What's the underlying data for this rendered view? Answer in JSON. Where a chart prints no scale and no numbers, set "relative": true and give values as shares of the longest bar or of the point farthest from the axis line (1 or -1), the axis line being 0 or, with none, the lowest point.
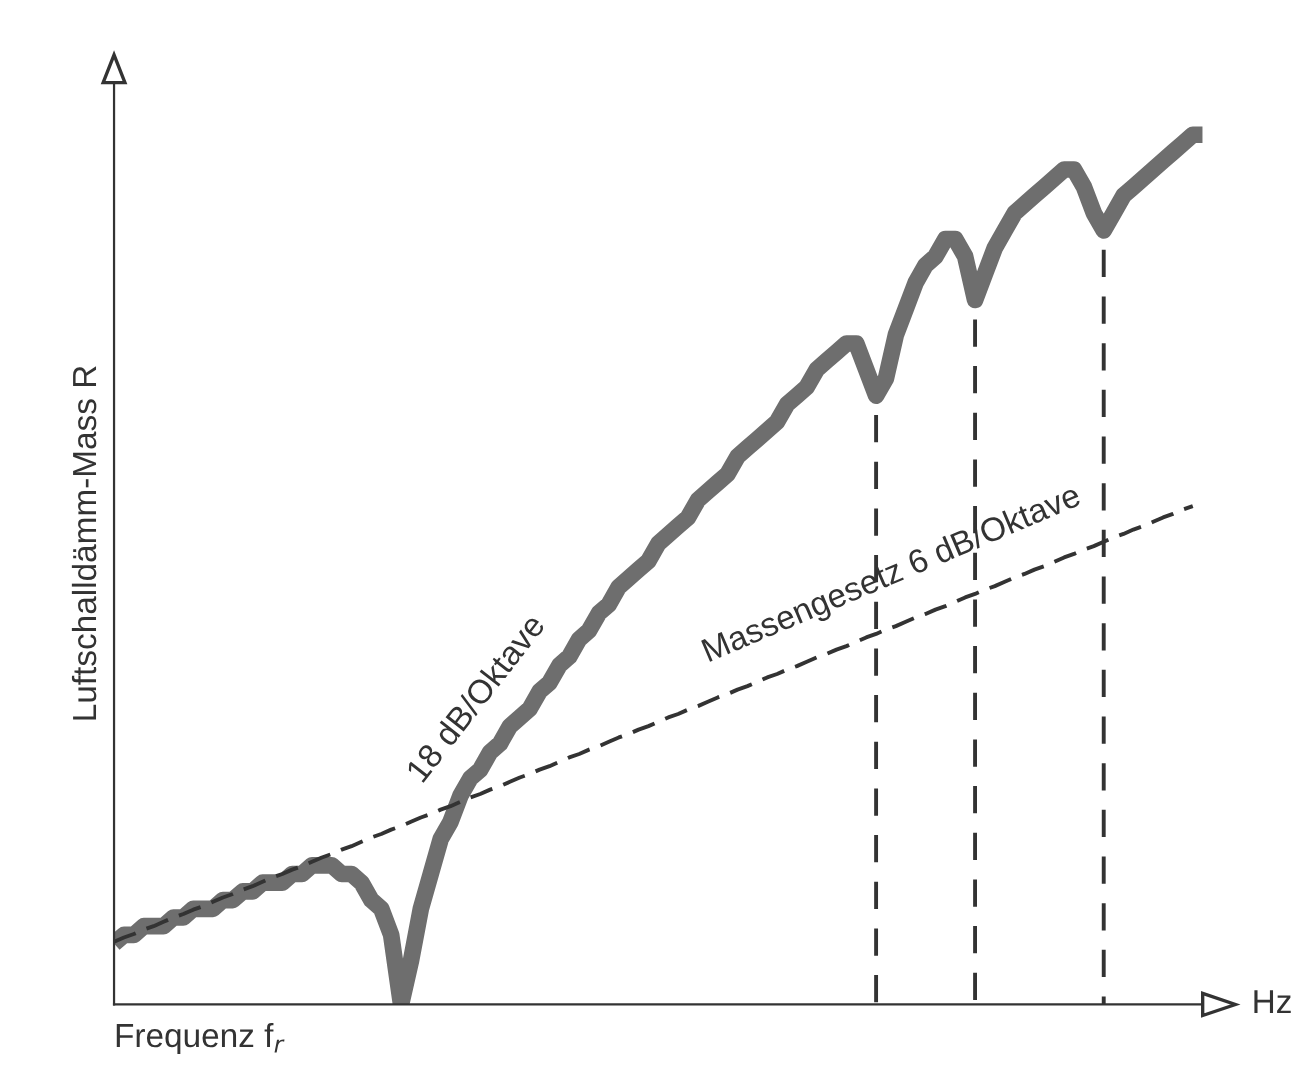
{
  "chart_data": {
    "type": "line",
    "relative": true,
    "ylabel": "Luftschalldämm-Mass R",
    "xlabel": "Hz",
    "tick_labels": false,
    "categories": [
      null,
      null,
      null,
      null,
      null,
      null,
      null,
      null,
      null,
      null,
      null,
      null,
      null,
      null,
      null,
      null,
      null,
      null,
      null,
      null,
      null,
      null,
      null,
      null,
      null,
      null,
      null,
      null,
      null,
      null,
      null,
      null,
      null,
      null,
      null,
      null,
      null,
      null,
      null,
      null,
      null,
      null,
      null,
      null,
      null,
      null,
      null,
      null,
      null,
      null,
      null,
      null,
      null,
      null,
      null,
      null,
      null,
      null,
      null,
      null,
      null,
      null,
      null,
      null,
      null,
      null,
      null,
      null,
      null,
      null,
      null,
      null,
      null,
      null,
      null,
      null,
      null,
      null,
      null,
      null,
      null,
      null,
      null,
      null,
      null,
      null,
      null,
      null,
      null,
      null,
      null,
      null,
      null,
      null,
      null,
      null,
      null,
      null,
      null,
      null,
      null,
      null,
      null,
      null,
      null,
      null,
      null,
      null,
      null,
      null,
      null
    ],
    "series": [
      {
        "color": "#6e6e6e",
        "line_style": "solid",
        "values": [
          0.07,
          0.08,
          0.08,
          0.09,
          0.09,
          0.09,
          0.1,
          0.1,
          0.11,
          0.11,
          0.11,
          0.12,
          0.12,
          0.13,
          0.13,
          0.14,
          0.14,
          0.14,
          0.15,
          0.15,
          0.16,
          0.16,
          0.16,
          0.15,
          0.15,
          0.14,
          0.12,
          0.11,
          0.08,
          0,
          0.05,
          0.11,
          0.15,
          0.19,
          0.21,
          0.24,
          0.26,
          0.27,
          0.29,
          0.3,
          0.32,
          0.33,
          0.34,
          0.36,
          0.37,
          0.39,
          0.4,
          0.42,
          0.43,
          0.45,
          0.46,
          0.48,
          0.49,
          0.5,
          0.51,
          0.53,
          0.54,
          0.55,
          0.56,
          0.58,
          0.59,
          0.6,
          0.61,
          0.63,
          0.64,
          0.65,
          0.66,
          0.67,
          0.69,
          0.7,
          0.71,
          0.73,
          0.74,
          0.75,
          0.76,
          0.76,
          0.73,
          0.7,
          0.72,
          0.77,
          0.8,
          0.83,
          0.85,
          0.86,
          0.88,
          0.88,
          0.86,
          0.81,
          0.84,
          0.87,
          0.89,
          0.91,
          0.92,
          0.93,
          0.94,
          0.95,
          0.96,
          0.96,
          0.94,
          0.91,
          0.89,
          0.91,
          0.93,
          0.94,
          0.95,
          0.96,
          0.97,
          0.98,
          0.99,
          1.0,
          1
        ]
      },
      {
        "color": "#333333",
        "line_style": "dashed",
        "values": [
          0.072,
          0.077,
          0.081,
          0.086,
          0.09,
          0.095,
          0.1,
          0.104,
          0.109,
          0.113,
          0.118,
          0.123,
          0.127,
          0.132,
          0.136,
          0.141,
          0.146,
          0.15,
          0.155,
          0.159,
          0.164,
          0.169,
          0.173,
          0.178,
          0.182,
          0.187,
          0.192,
          0.196,
          0.201,
          0.205,
          0.21,
          0.215,
          0.219,
          0.224,
          0.228,
          0.233,
          0.238,
          0.242,
          0.247,
          0.251,
          0.256,
          0.261,
          0.265,
          0.27,
          0.274,
          0.279,
          0.284,
          0.288,
          0.293,
          0.297,
          0.302,
          0.307,
          0.311,
          0.316,
          0.32,
          0.325,
          0.33,
          0.334,
          0.339,
          0.343,
          0.348,
          0.353,
          0.357,
          0.362,
          0.366,
          0.371,
          0.376,
          0.38,
          0.385,
          0.389,
          0.394,
          0.399,
          0.403,
          0.408,
          0.412,
          0.417,
          0.422,
          0.426,
          0.431,
          0.435,
          0.44,
          0.445,
          0.449,
          0.454,
          0.458,
          0.463,
          0.468,
          0.472,
          0.477,
          0.481,
          0.486,
          0.491,
          0.495,
          0.5,
          0.504,
          0.509,
          0.514,
          0.518,
          0.523,
          0.527,
          0.532,
          0.537,
          0.541,
          0.546,
          0.55,
          0.555,
          0.56,
          0.564,
          0.569,
          0.573,
          null
        ]
      }
    ],
    "annotations": [
      "18 dB/Oktave",
      "Massengesetz 6 dB/Oktave",
      "Frequenz f$_{r}$"
    ]
  }
}
